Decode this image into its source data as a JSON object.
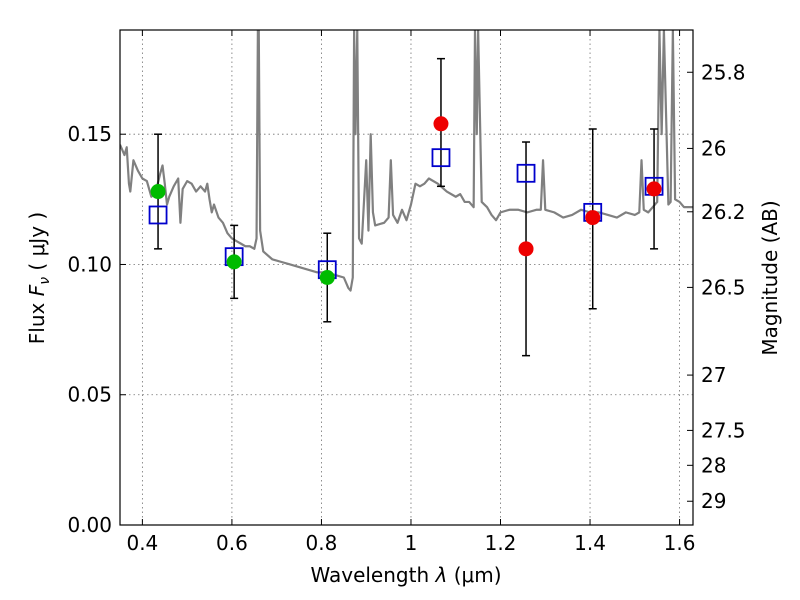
{
  "chart_data": {
    "type": "scatter",
    "xlabel_prefix": "Wavelength",
    "xlabel_symbol": "λ",
    "xlabel_unit": "(μm)",
    "ylabel_prefix": "Flux",
    "ylabel_symbol": "F",
    "ylabel_subscript": "ν",
    "ylabel_unit": "( μJy )",
    "y2label": "Magnitude (AB)",
    "xlim": [
      0.35,
      1.63
    ],
    "ylim": [
      0.0,
      0.19
    ],
    "grid": true,
    "x_ticks": [
      0.4,
      0.6,
      0.8,
      1.0,
      1.2,
      1.4,
      1.6
    ],
    "x_tick_labels": [
      "0.4",
      "0.6",
      "0.8",
      "1",
      "1.2",
      "1.4",
      "1.6"
    ],
    "y_ticks": [
      0.0,
      0.05,
      0.1,
      0.15
    ],
    "y_tick_labels": [
      "0.00",
      "0.05",
      "0.10",
      "0.15"
    ],
    "y2_ticks": [
      25.8,
      26,
      26.2,
      26.5,
      27,
      27.5,
      28,
      29
    ],
    "y2_tick_labels": [
      "25.8",
      "26",
      "26.2",
      "26.5",
      "27",
      "27.5",
      "28",
      "29"
    ],
    "series": [
      {
        "name": "model spectrum",
        "kind": "line",
        "color": "#808080",
        "points": [
          [
            0.35,
            0.146
          ],
          [
            0.36,
            0.142
          ],
          [
            0.365,
            0.145
          ],
          [
            0.37,
            0.131
          ],
          [
            0.373,
            0.128
          ],
          [
            0.38,
            0.14
          ],
          [
            0.39,
            0.136
          ],
          [
            0.4,
            0.133
          ],
          [
            0.41,
            0.132
          ],
          [
            0.42,
            0.126
          ],
          [
            0.43,
            0.128
          ],
          [
            0.44,
            0.135
          ],
          [
            0.445,
            0.138
          ],
          [
            0.45,
            0.131
          ],
          [
            0.455,
            0.123
          ],
          [
            0.46,
            0.126
          ],
          [
            0.47,
            0.13
          ],
          [
            0.48,
            0.133
          ],
          [
            0.485,
            0.116
          ],
          [
            0.49,
            0.129
          ],
          [
            0.5,
            0.132
          ],
          [
            0.51,
            0.131
          ],
          [
            0.52,
            0.128
          ],
          [
            0.53,
            0.13
          ],
          [
            0.54,
            0.128
          ],
          [
            0.545,
            0.131
          ],
          [
            0.55,
            0.125
          ],
          [
            0.555,
            0.12
          ],
          [
            0.56,
            0.123
          ],
          [
            0.57,
            0.118
          ],
          [
            0.58,
            0.116
          ],
          [
            0.59,
            0.112
          ],
          [
            0.6,
            0.11
          ],
          [
            0.61,
            0.109
          ],
          [
            0.62,
            0.108
          ],
          [
            0.63,
            0.107
          ],
          [
            0.64,
            0.107
          ],
          [
            0.65,
            0.106
          ],
          [
            0.655,
            0.11
          ],
          [
            0.658,
            0.19
          ],
          [
            0.66,
            0.19
          ],
          [
            0.663,
            0.113
          ],
          [
            0.67,
            0.105
          ],
          [
            0.69,
            0.102
          ],
          [
            0.71,
            0.101
          ],
          [
            0.73,
            0.1
          ],
          [
            0.75,
            0.099
          ],
          [
            0.77,
            0.098
          ],
          [
            0.79,
            0.097
          ],
          [
            0.81,
            0.097
          ],
          [
            0.83,
            0.096
          ],
          [
            0.85,
            0.095
          ],
          [
            0.86,
            0.091
          ],
          [
            0.865,
            0.09
          ],
          [
            0.87,
            0.095
          ],
          [
            0.873,
            0.19
          ],
          [
            0.876,
            0.15
          ],
          [
            0.88,
            0.19
          ],
          [
            0.884,
            0.11
          ],
          [
            0.89,
            0.108
          ],
          [
            0.9,
            0.14
          ],
          [
            0.905,
            0.113
          ],
          [
            0.91,
            0.15
          ],
          [
            0.915,
            0.12
          ],
          [
            0.92,
            0.115
          ],
          [
            0.94,
            0.116
          ],
          [
            0.95,
            0.118
          ],
          [
            0.955,
            0.14
          ],
          [
            0.96,
            0.119
          ],
          [
            0.97,
            0.116
          ],
          [
            0.98,
            0.121
          ],
          [
            0.99,
            0.117
          ],
          [
            1.0,
            0.123
          ],
          [
            1.01,
            0.131
          ],
          [
            1.02,
            0.13
          ],
          [
            1.03,
            0.131
          ],
          [
            1.04,
            0.133
          ],
          [
            1.06,
            0.131
          ],
          [
            1.08,
            0.128
          ],
          [
            1.1,
            0.126
          ],
          [
            1.11,
            0.127
          ],
          [
            1.12,
            0.124
          ],
          [
            1.13,
            0.124
          ],
          [
            1.14,
            0.122
          ],
          [
            1.143,
            0.19
          ],
          [
            1.147,
            0.15
          ],
          [
            1.15,
            0.19
          ],
          [
            1.158,
            0.124
          ],
          [
            1.17,
            0.122
          ],
          [
            1.18,
            0.119
          ],
          [
            1.19,
            0.117
          ],
          [
            1.2,
            0.12
          ],
          [
            1.22,
            0.121
          ],
          [
            1.24,
            0.121
          ],
          [
            1.26,
            0.12
          ],
          [
            1.28,
            0.121
          ],
          [
            1.29,
            0.121
          ],
          [
            1.295,
            0.14
          ],
          [
            1.3,
            0.121
          ],
          [
            1.32,
            0.12
          ],
          [
            1.34,
            0.118
          ],
          [
            1.36,
            0.119
          ],
          [
            1.38,
            0.121
          ],
          [
            1.4,
            0.12
          ],
          [
            1.42,
            0.12
          ],
          [
            1.44,
            0.119
          ],
          [
            1.46,
            0.118
          ],
          [
            1.48,
            0.12
          ],
          [
            1.5,
            0.119
          ],
          [
            1.51,
            0.12
          ],
          [
            1.515,
            0.14
          ],
          [
            1.52,
            0.121
          ],
          [
            1.53,
            0.12
          ],
          [
            1.54,
            0.122
          ],
          [
            1.55,
            0.124
          ],
          [
            1.555,
            0.19
          ],
          [
            1.56,
            0.15
          ],
          [
            1.565,
            0.19
          ],
          [
            1.575,
            0.123
          ],
          [
            1.58,
            0.124
          ],
          [
            1.585,
            0.19
          ],
          [
            1.59,
            0.125
          ],
          [
            1.6,
            0.124
          ],
          [
            1.61,
            0.122
          ],
          [
            1.63,
            0.122
          ]
        ]
      },
      {
        "name": "model photometry",
        "kind": "marker",
        "marker": "open-square",
        "color": "#0000cc",
        "points": [
          [
            0.435,
            0.119
          ],
          [
            0.605,
            0.103
          ],
          [
            0.813,
            0.098
          ],
          [
            1.067,
            0.141
          ],
          [
            1.257,
            0.135
          ],
          [
            1.406,
            0.12
          ],
          [
            1.543,
            0.13
          ]
        ]
      },
      {
        "name": "observed (green)",
        "kind": "marker",
        "marker": "filled-circle",
        "color": "#00bb00",
        "points": [
          [
            0.435,
            0.128
          ],
          [
            0.605,
            0.101
          ],
          [
            0.813,
            0.095
          ]
        ]
      },
      {
        "name": "observed (red)",
        "kind": "marker",
        "marker": "filled-circle",
        "color": "#ee0000",
        "points": [
          [
            1.067,
            0.154
          ],
          [
            1.257,
            0.106
          ],
          [
            1.406,
            0.118
          ],
          [
            1.543,
            0.129
          ]
        ]
      },
      {
        "name": "error bars",
        "kind": "errorbar",
        "color": "#000000",
        "bars": [
          {
            "x": 0.435,
            "low": 0.106,
            "high": 0.15
          },
          {
            "x": 0.605,
            "low": 0.087,
            "high": 0.115
          },
          {
            "x": 0.813,
            "low": 0.078,
            "high": 0.112
          },
          {
            "x": 1.067,
            "low": 0.13,
            "high": 0.179
          },
          {
            "x": 1.257,
            "low": 0.065,
            "high": 0.147
          },
          {
            "x": 1.406,
            "low": 0.083,
            "high": 0.152
          },
          {
            "x": 1.543,
            "low": 0.106,
            "high": 0.152
          }
        ]
      }
    ]
  }
}
